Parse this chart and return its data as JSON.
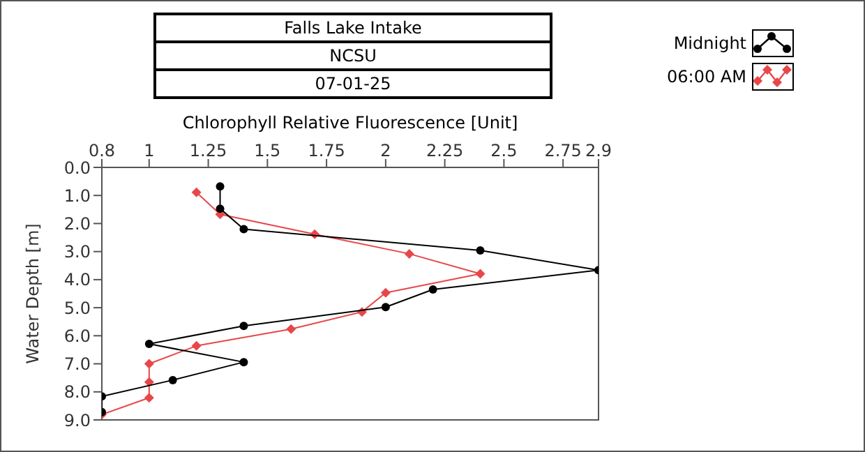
{
  "chart_data": {
    "type": "line",
    "title": "Falls Lake Intake",
    "subtitle": "NCSU",
    "annotations": [
      "07-01-25"
    ],
    "xlabel": "Chlorophyll Relative Fluorescence [Unit]",
    "ylabel": "Water Depth [m]",
    "xlim": [
      0.8,
      2.9
    ],
    "xticks": [
      0.8,
      1,
      1.25,
      1.5,
      1.75,
      2,
      2.25,
      2.5,
      2.75,
      2.9
    ],
    "ylim": [
      9,
      0
    ],
    "yticks": [
      {
        "value": 0,
        "label": "0.0"
      },
      {
        "value": 1,
        "label": "1.0"
      },
      {
        "value": 2,
        "label": "2.0"
      },
      {
        "value": 3,
        "label": "3.0"
      },
      {
        "value": 4,
        "label": "4.0"
      },
      {
        "value": 5,
        "label": "5.0"
      },
      {
        "value": 6,
        "label": "6.0"
      },
      {
        "value": 7,
        "label": "7.0"
      },
      {
        "value": 8,
        "label": "8.0"
      },
      {
        "value": 9,
        "label": "9.0"
      }
    ],
    "grid": false,
    "legend": "top right",
    "line_style": "solid",
    "series": [
      {
        "name": "Midnight",
        "color": "#000000",
        "marker": "circle",
        "x": [
          1.3,
          1.3,
          1.4,
          2.4,
          2.9,
          2.2,
          2.0,
          1.4,
          1.0,
          1.4,
          1.1,
          0.8,
          0.8
        ],
        "values": [
          0.68,
          1.47,
          2.2,
          2.96,
          3.66,
          4.35,
          4.98,
          5.65,
          6.29,
          6.94,
          7.58,
          8.16,
          8.72
        ]
      },
      {
        "name": "06:00 AM",
        "color": "#e8474a",
        "marker": "diamond",
        "x": [
          1.2,
          1.3,
          1.7,
          2.1,
          2.4,
          2.0,
          1.9,
          1.6,
          1.2,
          1.0,
          1.0,
          1.0,
          0.8
        ],
        "values": [
          0.89,
          1.67,
          2.38,
          3.08,
          3.79,
          4.47,
          5.15,
          5.76,
          6.36,
          7.0,
          7.65,
          8.21,
          8.81
        ]
      }
    ]
  }
}
